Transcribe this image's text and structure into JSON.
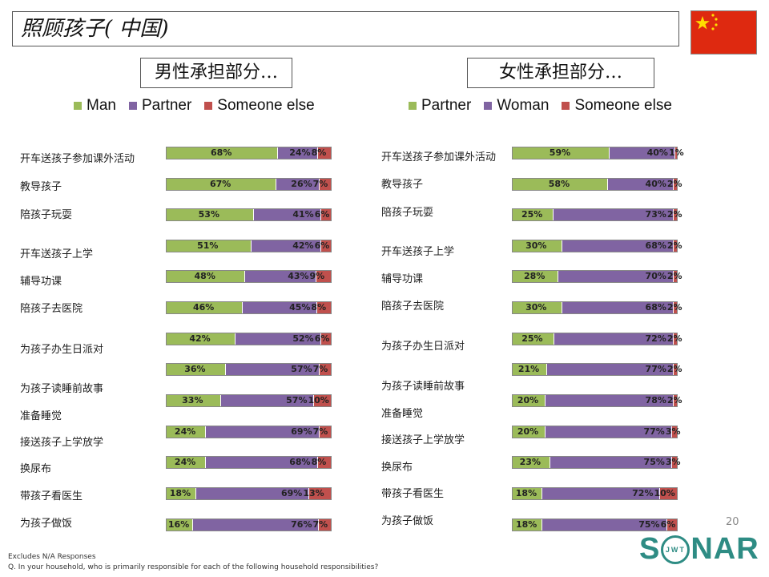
{
  "title": "照顾孩子( 中国)",
  "page_number": "20",
  "footnotes": [
    "Excludes N/A Responses",
    "Q. In your household, who is primarily responsible for each of the following household responsibilities?"
  ],
  "logo": {
    "left": "S",
    "ring": "JWT",
    "right": "NAR"
  },
  "colors": {
    "green": "#9bbb59",
    "purple": "#8064a2",
    "red": "#c0504d"
  },
  "chart_data": [
    {
      "type": "bar",
      "stacked": true,
      "orientation": "horizontal",
      "title": "男性承担部分…",
      "legend_position": "top",
      "legend": [
        "Man",
        "Partner",
        "Someone else"
      ],
      "categories": [
        "开车送孩子参加课外活动",
        "教导孩子",
        "陪孩子玩耍",
        "开车送孩子上学",
        "辅导功课",
        "陪孩子去医院",
        "为孩子办生日派对",
        "为孩子读睡前故事",
        "准备睡觉",
        "接送孩子上学放学",
        "换尿布",
        "带孩子看医生",
        "为孩子做饭"
      ],
      "series": [
        {
          "name": "Man",
          "values": [
            68,
            67,
            53,
            51,
            48,
            46,
            42,
            36,
            33,
            24,
            24,
            18,
            16
          ]
        },
        {
          "name": "Partner",
          "values": [
            24,
            26,
            41,
            42,
            43,
            45,
            52,
            57,
            57,
            69,
            68,
            69,
            76
          ]
        },
        {
          "name": "Someone else",
          "values": [
            8,
            7,
            6,
            6,
            9,
            8,
            6,
            7,
            10,
            7,
            8,
            13,
            7
          ]
        }
      ],
      "value_suffix": "%"
    },
    {
      "type": "bar",
      "stacked": true,
      "orientation": "horizontal",
      "title": "女性承担部分…",
      "legend_position": "top",
      "legend": [
        "Partner",
        "Woman",
        "Someone else"
      ],
      "categories": [
        "开车送孩子参加课外活动",
        "教导孩子",
        "陪孩子玩耍",
        "开车送孩子上学",
        "辅导功课",
        "陪孩子去医院",
        "为孩子办生日派对",
        "为孩子读睡前故事",
        "准备睡觉",
        "接送孩子上学放学",
        "换尿布",
        "带孩子看医生",
        "为孩子做饭"
      ],
      "series": [
        {
          "name": "Partner",
          "values": [
            59,
            58,
            25,
            30,
            28,
            30,
            25,
            21,
            20,
            20,
            23,
            18,
            18
          ]
        },
        {
          "name": "Woman",
          "values": [
            40,
            40,
            73,
            68,
            70,
            68,
            72,
            77,
            78,
            77,
            75,
            72,
            75
          ]
        },
        {
          "name": "Someone else",
          "values": [
            1,
            2,
            2,
            2,
            2,
            2,
            2,
            2,
            2,
            3,
            3,
            10,
            6
          ]
        }
      ],
      "value_suffix": "%"
    }
  ]
}
